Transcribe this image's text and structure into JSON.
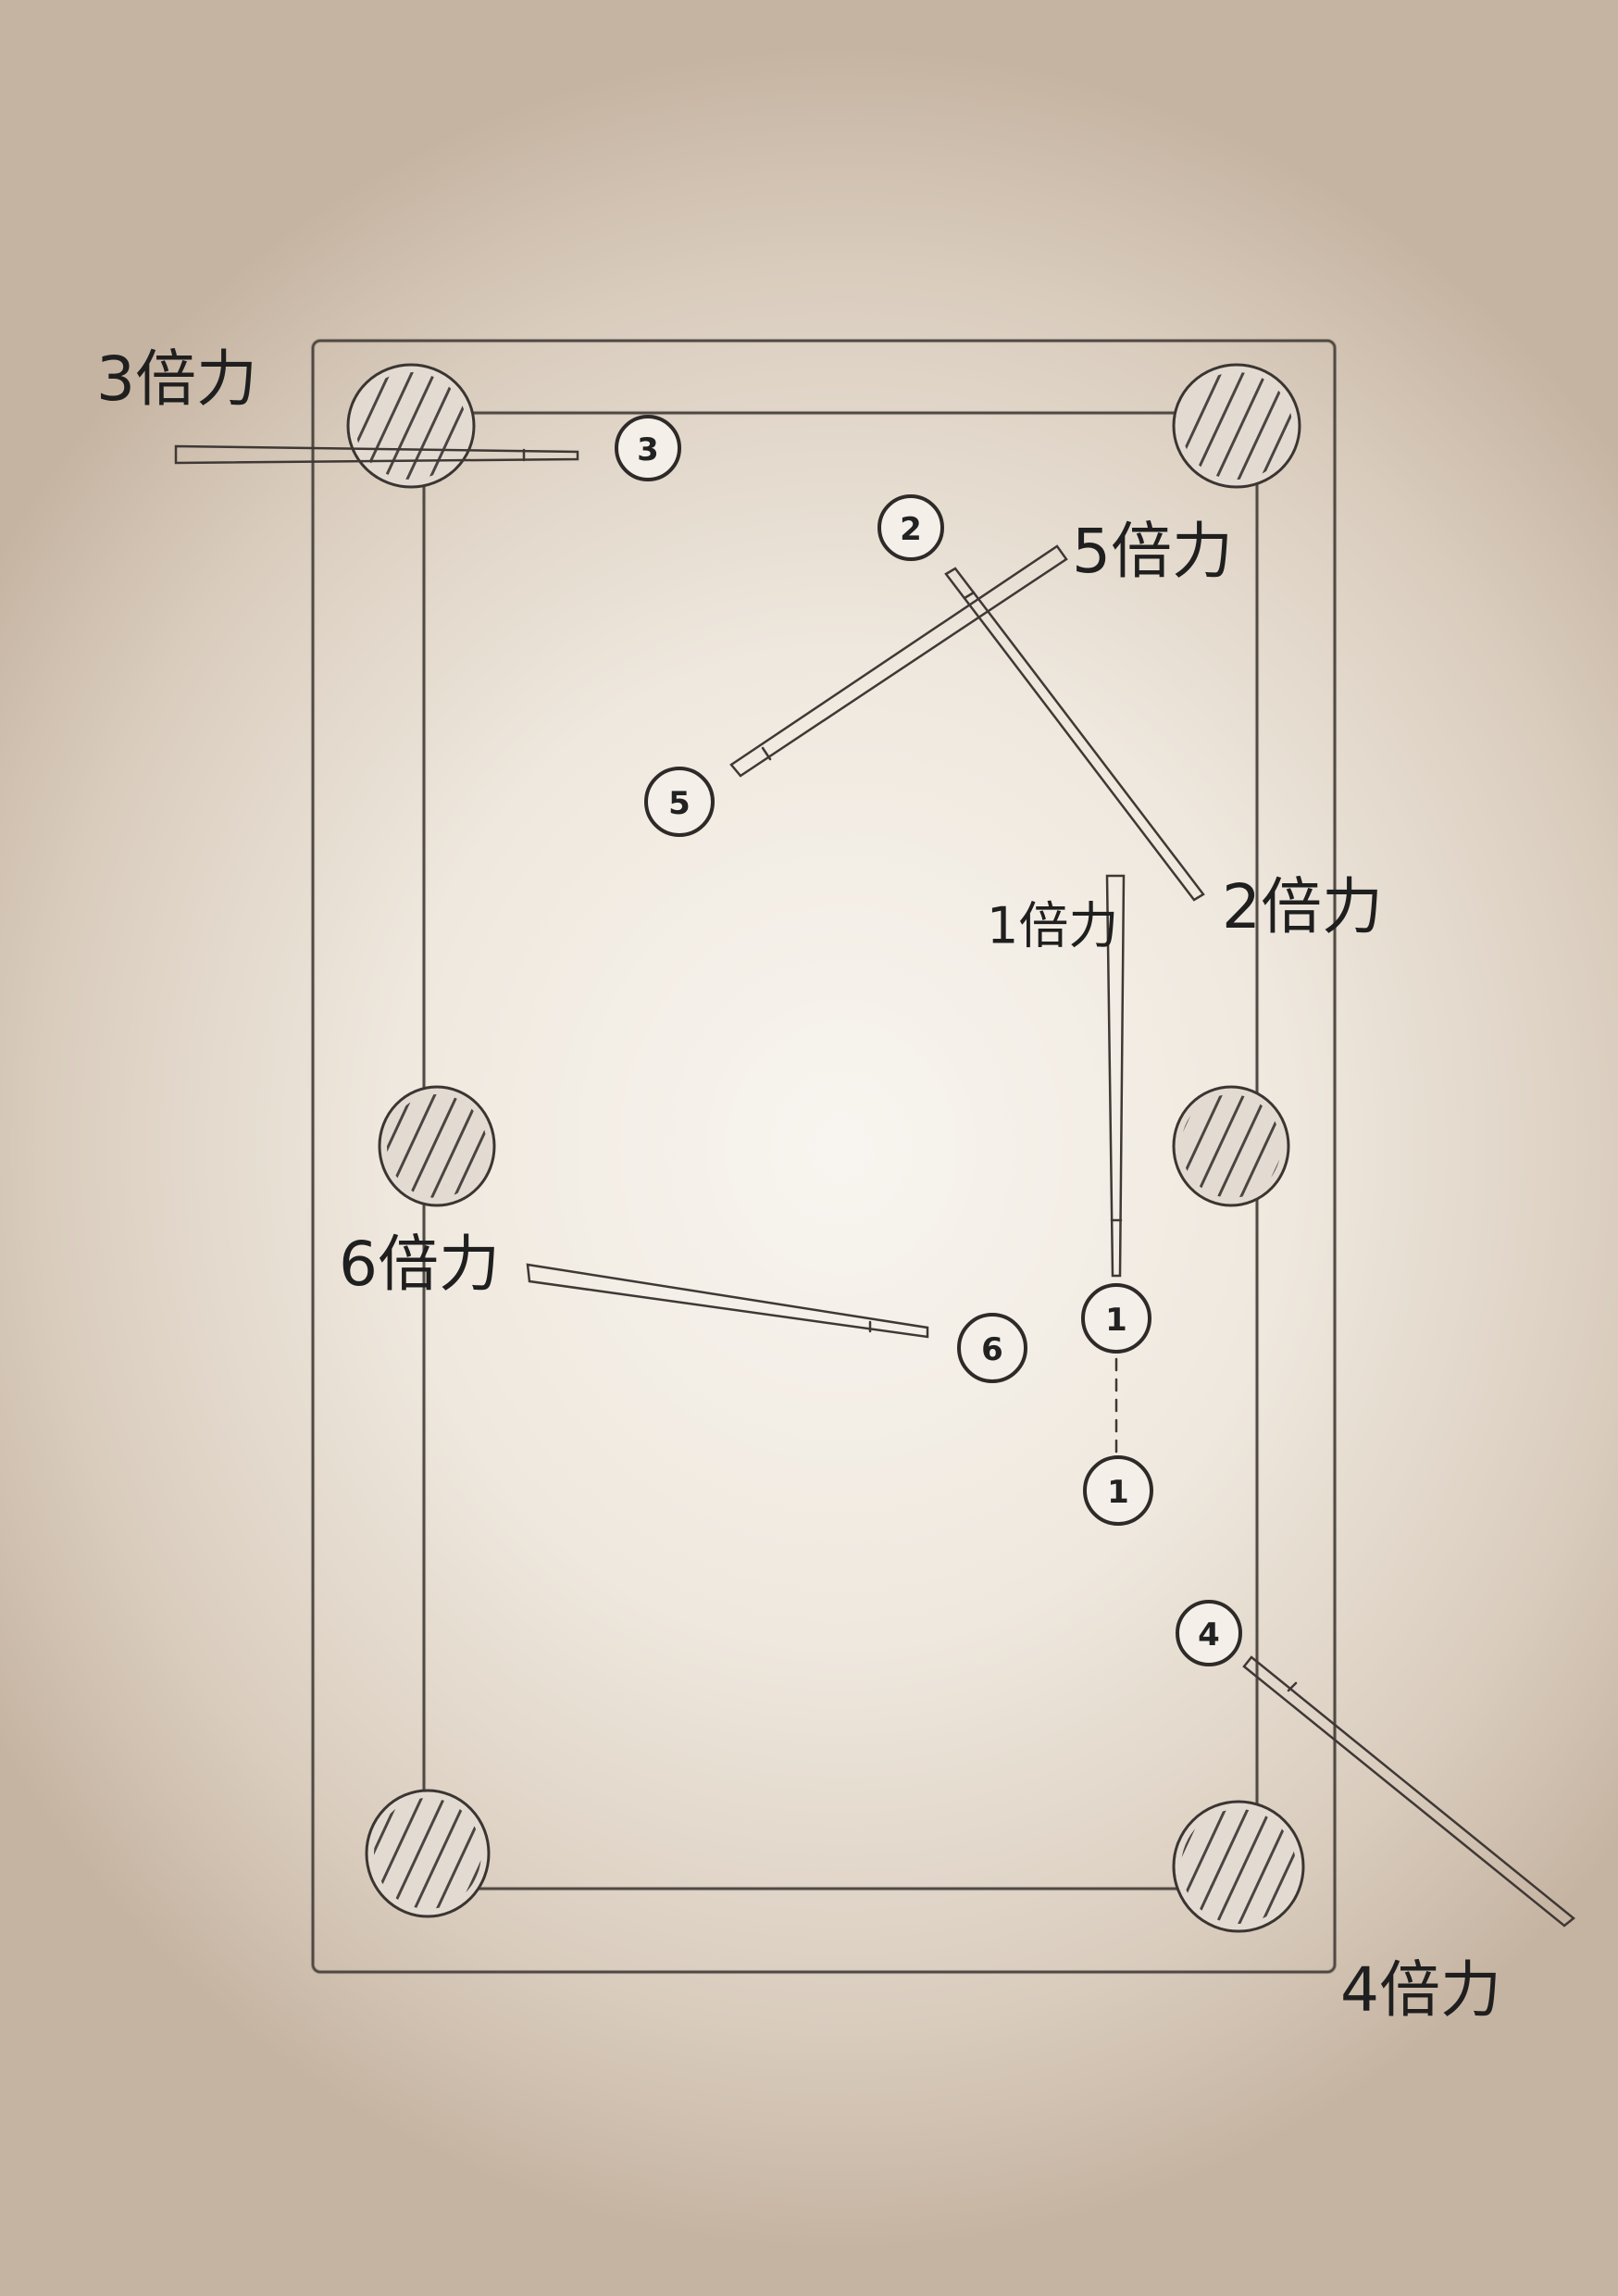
{
  "pockets": [
    "top-left",
    "top-right",
    "middle-left",
    "middle-right",
    "bottom-left",
    "bottom-right"
  ],
  "balls": [
    {
      "id": "ball-3",
      "label": "3"
    },
    {
      "id": "ball-2",
      "label": "2"
    },
    {
      "id": "ball-5",
      "label": "5"
    },
    {
      "id": "ball-1-upper",
      "label": "1"
    },
    {
      "id": "ball-1-lower",
      "label": "1"
    },
    {
      "id": "ball-6",
      "label": "6"
    },
    {
      "id": "ball-4",
      "label": "4"
    }
  ],
  "power_labels": {
    "three": "3倍力",
    "five": "5倍力",
    "two": "2倍力",
    "one": "1倍力",
    "six": "6倍力",
    "four": "4倍力"
  },
  "colors": {
    "line": "#4a423e",
    "text": "#1f1f1f",
    "paper": "#efe8de",
    "pocket_fill": "#d9d1c9"
  }
}
